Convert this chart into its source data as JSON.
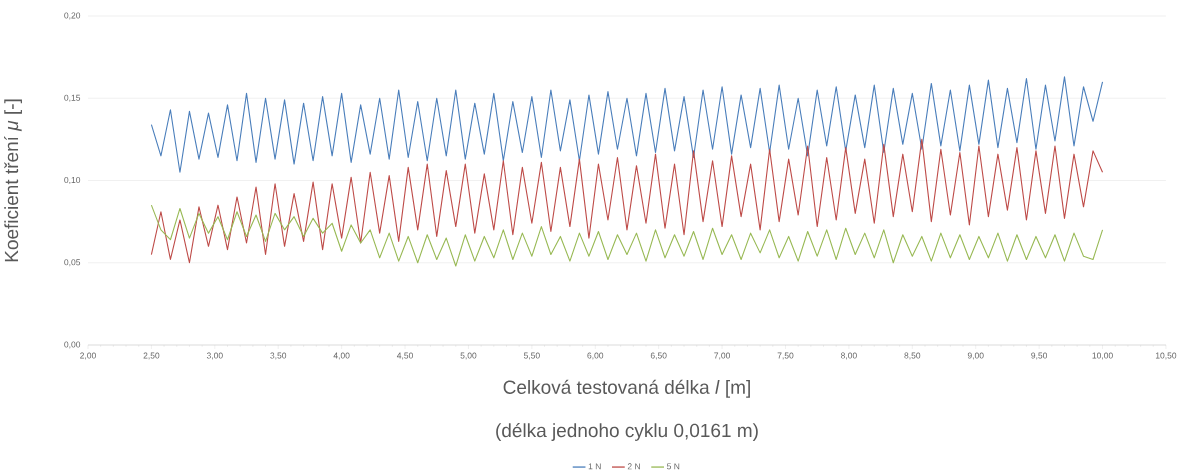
{
  "chart_data": {
    "type": "line",
    "xlabel": "Celková testovaná délka *l* [m]",
    "ylabel": "Koeficient tření *μ* [-]",
    "annotations": [
      "(délka jednoho cyklu 0,0161 m)"
    ],
    "x": [
      2.5,
      2.575,
      2.65,
      2.725,
      2.8,
      2.875,
      2.95,
      3.025,
      3.1,
      3.175,
      3.25,
      3.325,
      3.4,
      3.475,
      3.55,
      3.625,
      3.7,
      3.775,
      3.85,
      3.925,
      4,
      4.075,
      4.15,
      4.225,
      4.3,
      4.375,
      4.45,
      4.525,
      4.6,
      4.675,
      4.75,
      4.825,
      4.9,
      4.975,
      5.05,
      5.125,
      5.2,
      5.275,
      5.35,
      5.425,
      5.5,
      5.575,
      5.65,
      5.725,
      5.8,
      5.875,
      5.95,
      6.025,
      6.1,
      6.175,
      6.25,
      6.325,
      6.4,
      6.475,
      6.55,
      6.625,
      6.7,
      6.775,
      6.85,
      6.925,
      7,
      7.075,
      7.15,
      7.225,
      7.3,
      7.375,
      7.45,
      7.525,
      7.6,
      7.675,
      7.75,
      7.825,
      7.9,
      7.975,
      8.05,
      8.125,
      8.2,
      8.275,
      8.35,
      8.425,
      8.5,
      8.575,
      8.65,
      8.725,
      8.8,
      8.875,
      8.95,
      9.025,
      9.1,
      9.175,
      9.25,
      9.325,
      9.4,
      9.475,
      9.55,
      9.625,
      9.7,
      9.775,
      9.85,
      9.925,
      10
    ],
    "series": [
      {
        "name": "1 N",
        "color": "#4a7ebb",
        "values": [
          0.134,
          0.115,
          0.143,
          0.105,
          0.142,
          0.113,
          0.141,
          0.114,
          0.146,
          0.112,
          0.153,
          0.111,
          0.15,
          0.113,
          0.149,
          0.11,
          0.147,
          0.112,
          0.151,
          0.115,
          0.153,
          0.111,
          0.146,
          0.116,
          0.15,
          0.113,
          0.155,
          0.114,
          0.148,
          0.112,
          0.15,
          0.115,
          0.155,
          0.113,
          0.147,
          0.116,
          0.153,
          0.112,
          0.148,
          0.117,
          0.151,
          0.114,
          0.155,
          0.118,
          0.149,
          0.112,
          0.152,
          0.116,
          0.154,
          0.119,
          0.15,
          0.115,
          0.153,
          0.117,
          0.156,
          0.118,
          0.151,
          0.114,
          0.155,
          0.119,
          0.157,
          0.116,
          0.152,
          0.12,
          0.156,
          0.117,
          0.158,
          0.119,
          0.15,
          0.115,
          0.155,
          0.121,
          0.157,
          0.118,
          0.152,
          0.12,
          0.158,
          0.117,
          0.156,
          0.122,
          0.153,
          0.119,
          0.159,
          0.121,
          0.155,
          0.118,
          0.158,
          0.122,
          0.161,
          0.12,
          0.156,
          0.123,
          0.162,
          0.119,
          0.158,
          0.124,
          0.163,
          0.121,
          0.157,
          0.136,
          0.16
        ]
      },
      {
        "name": "2 N",
        "color": "#be4b48",
        "values": [
          0.055,
          0.081,
          0.052,
          0.076,
          0.05,
          0.084,
          0.06,
          0.085,
          0.058,
          0.09,
          0.062,
          0.096,
          0.055,
          0.098,
          0.06,
          0.092,
          0.063,
          0.099,
          0.058,
          0.098,
          0.065,
          0.102,
          0.062,
          0.105,
          0.068,
          0.103,
          0.063,
          0.108,
          0.07,
          0.11,
          0.066,
          0.106,
          0.072,
          0.11,
          0.068,
          0.104,
          0.07,
          0.112,
          0.067,
          0.108,
          0.074,
          0.111,
          0.069,
          0.108,
          0.072,
          0.113,
          0.065,
          0.11,
          0.076,
          0.114,
          0.07,
          0.109,
          0.074,
          0.116,
          0.071,
          0.11,
          0.067,
          0.118,
          0.075,
          0.112,
          0.072,
          0.115,
          0.078,
          0.11,
          0.07,
          0.119,
          0.075,
          0.113,
          0.079,
          0.121,
          0.072,
          0.114,
          0.076,
          0.12,
          0.08,
          0.113,
          0.074,
          0.122,
          0.078,
          0.116,
          0.081,
          0.125,
          0.075,
          0.119,
          0.079,
          0.117,
          0.073,
          0.121,
          0.078,
          0.116,
          0.082,
          0.12,
          0.076,
          0.118,
          0.08,
          0.121,
          0.077,
          0.116,
          0.084,
          0.118,
          0.105
        ]
      },
      {
        "name": "5 N",
        "color": "#98b954",
        "values": [
          0.085,
          0.07,
          0.064,
          0.083,
          0.065,
          0.08,
          0.068,
          0.078,
          0.064,
          0.081,
          0.066,
          0.079,
          0.063,
          0.08,
          0.07,
          0.078,
          0.066,
          0.077,
          0.068,
          0.074,
          0.057,
          0.073,
          0.062,
          0.07,
          0.053,
          0.068,
          0.051,
          0.066,
          0.05,
          0.067,
          0.052,
          0.065,
          0.048,
          0.067,
          0.051,
          0.066,
          0.053,
          0.07,
          0.052,
          0.068,
          0.054,
          0.072,
          0.055,
          0.066,
          0.051,
          0.068,
          0.054,
          0.069,
          0.052,
          0.067,
          0.055,
          0.068,
          0.051,
          0.07,
          0.053,
          0.067,
          0.054,
          0.069,
          0.052,
          0.071,
          0.055,
          0.067,
          0.052,
          0.068,
          0.056,
          0.07,
          0.053,
          0.066,
          0.051,
          0.069,
          0.054,
          0.07,
          0.052,
          0.071,
          0.055,
          0.068,
          0.053,
          0.07,
          0.05,
          0.067,
          0.054,
          0.066,
          0.051,
          0.068,
          0.053,
          0.067,
          0.052,
          0.066,
          0.053,
          0.068,
          0.051,
          0.067,
          0.052,
          0.066,
          0.053,
          0.067,
          0.051,
          0.068,
          0.054,
          0.052,
          0.07
        ]
      }
    ],
    "xlim": [
      2,
      10.5
    ],
    "xticks": [
      {
        "value": 2,
        "label": "2,00"
      },
      {
        "value": 2.5,
        "label": "2,50"
      },
      {
        "value": 3,
        "label": "3,00"
      },
      {
        "value": 3.5,
        "label": "3,50"
      },
      {
        "value": 4,
        "label": "4,00"
      },
      {
        "value": 4.5,
        "label": "4,50"
      },
      {
        "value": 5,
        "label": "5,00"
      },
      {
        "value": 5.5,
        "label": "5,50"
      },
      {
        "value": 6,
        "label": "6,00"
      },
      {
        "value": 6.5,
        "label": "6,50"
      },
      {
        "value": 7,
        "label": "7,00"
      },
      {
        "value": 7.5,
        "label": "7,50"
      },
      {
        "value": 8,
        "label": "8,00"
      },
      {
        "value": 8.5,
        "label": "8,50"
      },
      {
        "value": 9,
        "label": "9,00"
      },
      {
        "value": 9.5,
        "label": "9,50"
      },
      {
        "value": 10,
        "label": "10,00"
      },
      {
        "value": 10.5,
        "label": "10,50"
      }
    ],
    "ylim": [
      0,
      0.2
    ],
    "yticks": [
      {
        "value": 0,
        "label": "0,00"
      },
      {
        "value": 0.05,
        "label": "0,05"
      },
      {
        "value": 0.1,
        "label": "0,10"
      },
      {
        "value": 0.15,
        "label": "0,15"
      },
      {
        "value": 0.2,
        "label": "0,20"
      }
    ],
    "grid": "y",
    "legend": "bottom",
    "marker": "none",
    "line_style": "solid"
  }
}
